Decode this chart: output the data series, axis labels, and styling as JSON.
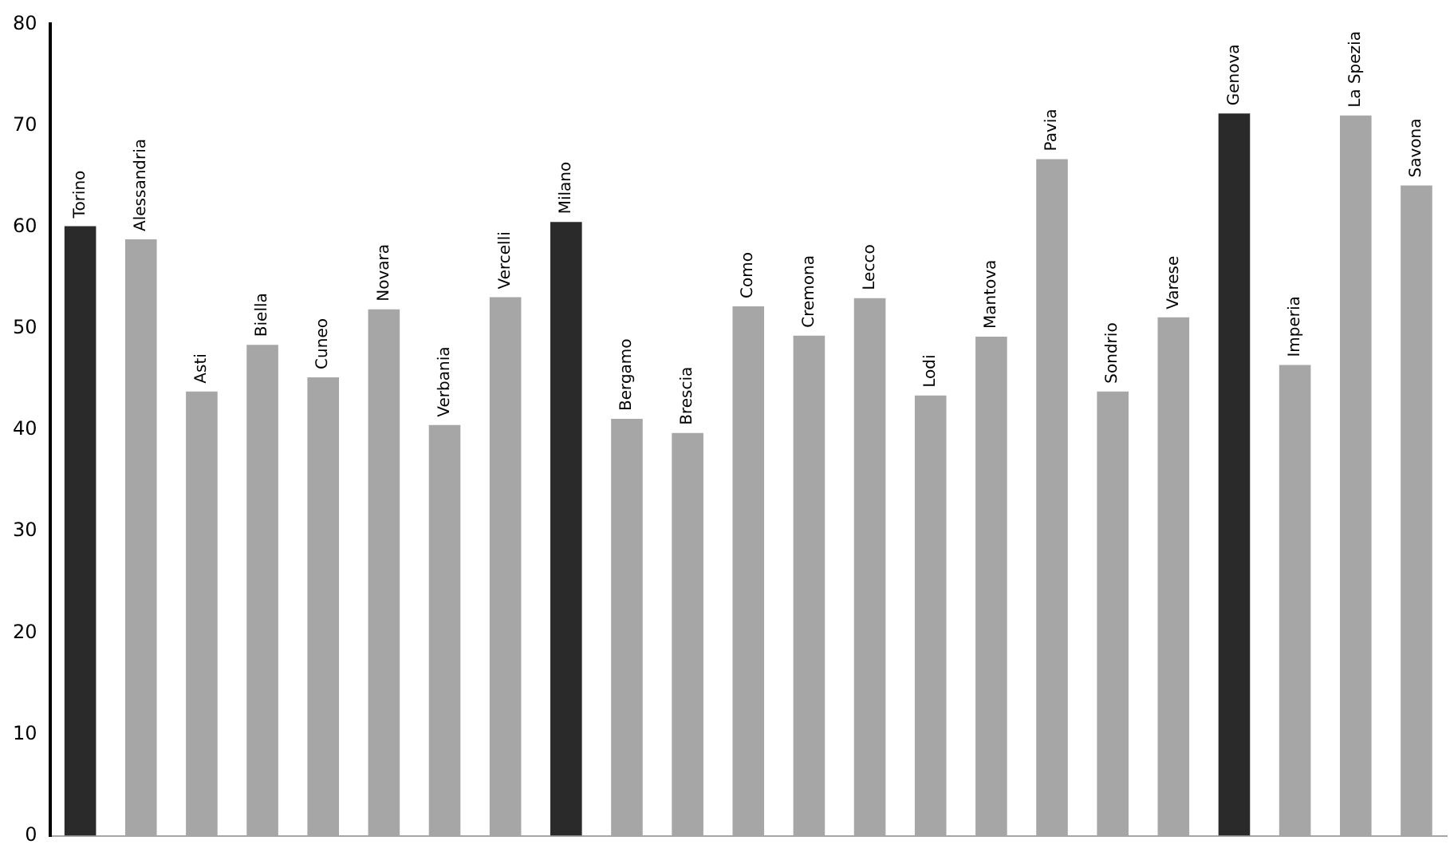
{
  "chart_data": {
    "type": "bar",
    "categories": [
      "Torino",
      "Alessandria",
      "Asti",
      "Biella",
      "Cuneo",
      "Novara",
      "Verbania",
      "Vercelli",
      "Milano",
      "Bergamo",
      "Brescia",
      "Como",
      "Cremona",
      "Lecco",
      "Lodi",
      "Mantova",
      "Pavia",
      "Sondrio",
      "Varese",
      "Genova",
      "Imperia",
      "La Spezia",
      "Savona"
    ],
    "values": [
      60.1,
      58.8,
      43.8,
      48.4,
      45.2,
      51.9,
      40.5,
      53.1,
      60.5,
      41.1,
      39.7,
      52.2,
      49.3,
      53.0,
      43.4,
      49.2,
      66.7,
      43.8,
      51.1,
      71.2,
      46.4,
      71.0,
      64.1
    ],
    "colors": [
      "#2a2a2a",
      "#a6a6a6",
      "#a6a6a6",
      "#a6a6a6",
      "#a6a6a6",
      "#a6a6a6",
      "#a6a6a6",
      "#a6a6a6",
      "#2a2a2a",
      "#a6a6a6",
      "#a6a6a6",
      "#a6a6a6",
      "#a6a6a6",
      "#a6a6a6",
      "#a6a6a6",
      "#a6a6a6",
      "#a6a6a6",
      "#a6a6a6",
      "#a6a6a6",
      "#2a2a2a",
      "#a6a6a6",
      "#a6a6a6",
      "#a6a6a6"
    ],
    "ylim": [
      0,
      80
    ],
    "yticks": [
      0,
      10,
      20,
      30,
      40,
      50,
      60,
      70,
      80
    ],
    "tick_labels": "y",
    "grid": false,
    "legend": false
  }
}
